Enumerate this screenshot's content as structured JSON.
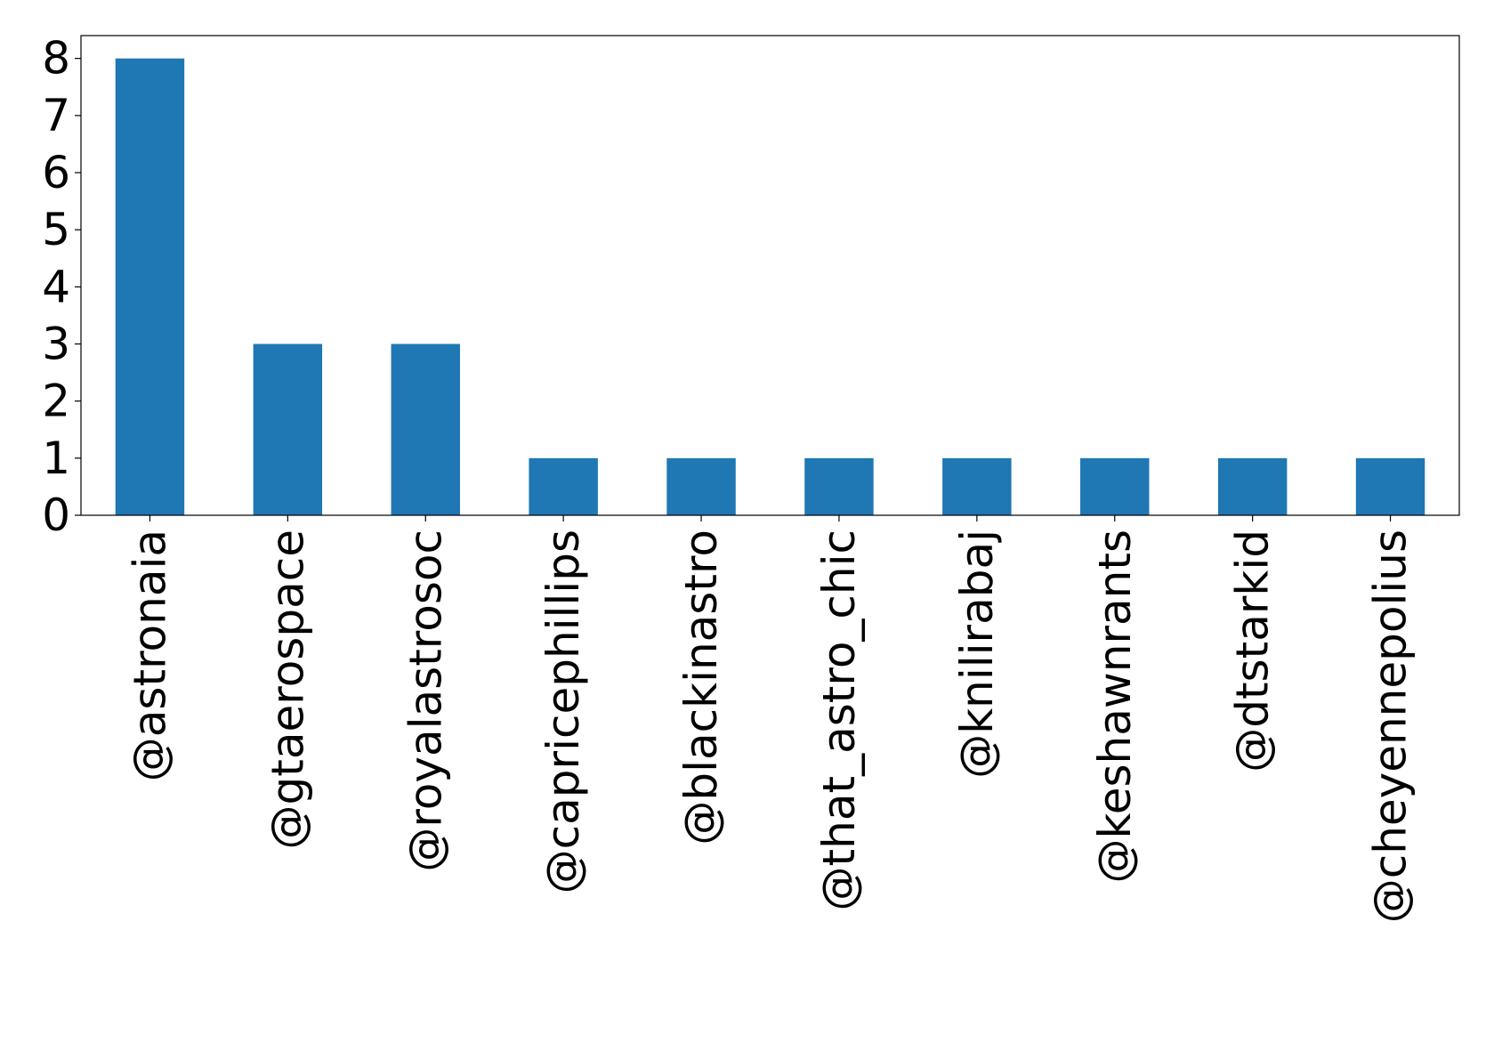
{
  "chart_data": {
    "type": "bar",
    "categories": [
      "@astronaia",
      "@gtaerospace",
      "@royalastrosoc",
      "@capricephillips",
      "@blackinastro",
      "@that_astro_chic",
      "@knilirabaj",
      "@keshawnrants",
      "@dtstarkid",
      "@cheyennepolius"
    ],
    "values": [
      8,
      3,
      3,
      1,
      1,
      1,
      1,
      1,
      1,
      1
    ],
    "color": "#1f77b4",
    "ylim": [
      0,
      8.4
    ],
    "yticks": [
      0,
      1,
      2,
      3,
      4,
      5,
      6,
      7,
      8
    ],
    "grid": false
  }
}
